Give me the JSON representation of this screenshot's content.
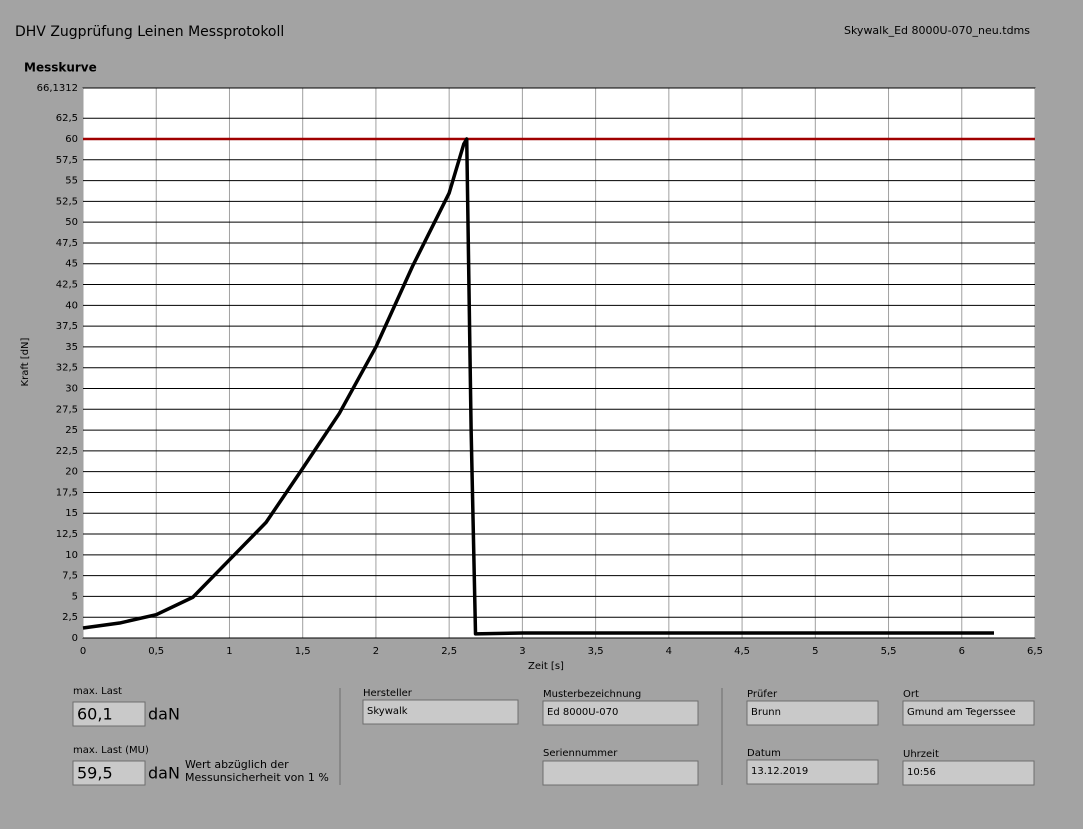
{
  "header": {
    "title": "DHV Zugprüfung Leinen Messprotokoll",
    "file": "Skywalk_Ed 8000U-070_neu.tdms"
  },
  "chart_data": {
    "type": "line",
    "title": "Messkurve",
    "x_label": "Zeit [s]",
    "y_label": "Kraft [dN]",
    "x": [
      0,
      0.25,
      0.5,
      0.75,
      1,
      1.25,
      1.5,
      1.75,
      2,
      2.25,
      2.5,
      2.6,
      2.62,
      2.65,
      2.68,
      3,
      4,
      5,
      6,
      6.22
    ],
    "series": [
      {
        "color": "#000000",
        "values": [
          1.2,
          1.8,
          2.8,
          4.9,
          9.4,
          13.9,
          20.4,
          27,
          35,
          44.7,
          53.5,
          59.4,
          60,
          25,
          0.5,
          0.6,
          0.6,
          0.6,
          0.6,
          0.6
        ]
      }
    ],
    "xlim": [
      0,
      6.5
    ],
    "ylim": [
      0,
      66.1312
    ],
    "xticks": [
      0,
      {
        "value": 0.5,
        "label": "0,5"
      },
      1,
      {
        "value": 1.5,
        "label": "1,5"
      },
      2,
      {
        "value": 2.5,
        "label": "2,5"
      },
      3,
      {
        "value": 3.5,
        "label": "3,5"
      },
      4,
      {
        "value": 4.5,
        "label": "4,5"
      },
      5,
      {
        "value": 5.5,
        "label": "5,5"
      },
      6,
      {
        "value": 6.5,
        "label": "6,5"
      }
    ],
    "yticks": [
      0,
      {
        "value": 2.5,
        "label": "2,5"
      },
      5,
      {
        "value": 7.5,
        "label": "7,5"
      },
      10,
      {
        "value": 12.5,
        "label": "12,5"
      },
      15,
      {
        "value": 17.5,
        "label": "17,5"
      },
      20,
      {
        "value": 22.5,
        "label": "22,5"
      },
      25,
      {
        "value": 27.5,
        "label": "27,5"
      },
      30,
      {
        "value": 32.5,
        "label": "32,5"
      },
      35,
      {
        "value": 37.5,
        "label": "37,5"
      },
      40,
      {
        "value": 42.5,
        "label": "42,5"
      },
      45,
      {
        "value": 47.5,
        "label": "47,5"
      },
      50,
      {
        "value": 52.5,
        "label": "52,5"
      },
      55,
      {
        "value": 57.5,
        "label": "57,5"
      },
      60,
      {
        "value": 62.5,
        "label": "62,5"
      },
      {
        "value": 66.1312,
        "label": "66,1312"
      }
    ],
    "grid": true,
    "reference_line": {
      "value": 60,
      "color": "#a00000"
    }
  },
  "results": {
    "max_load": {
      "label": "max. Last",
      "value": "60,1",
      "unit": "daN"
    },
    "max_load_mu": {
      "label": "max. Last (MU)",
      "value": "59,5",
      "unit": "daN",
      "note": [
        "Wert abzüglich der",
        "Messunsicherheit von 1 %"
      ]
    }
  },
  "fields": {
    "hersteller": {
      "label": "Hersteller",
      "value": "Skywalk"
    },
    "muster": {
      "label": "Musterbezeichnung",
      "value": "Ed 8000U-070"
    },
    "serien": {
      "label": "Seriennummer"
    },
    "pruefer": {
      "label": "Prüfer",
      "value": "Brunn"
    },
    "ort": {
      "label": "Ort",
      "value": "Gmund am Tegerssee"
    },
    "datum": {
      "label": "Datum",
      "value": "13.12.2019"
    },
    "uhrzeit": {
      "label": "Uhrzeit",
      "value": "10:56"
    }
  }
}
